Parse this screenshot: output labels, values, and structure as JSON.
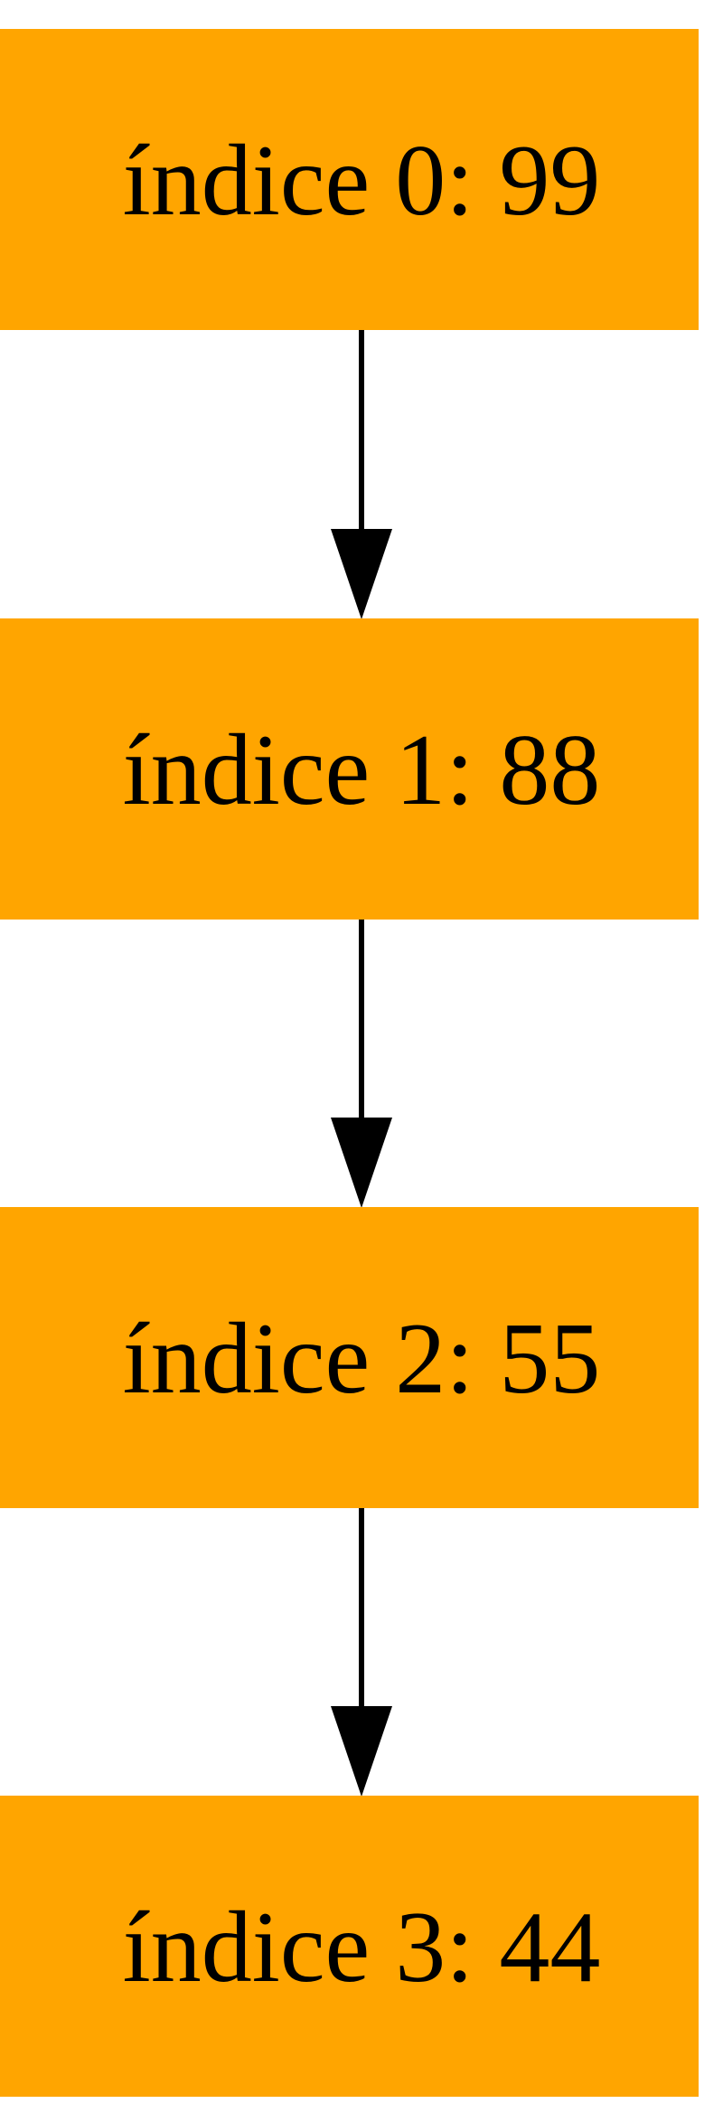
{
  "diagram": {
    "type": "flowchart",
    "node_fill": "#FFA500",
    "edge_color": "#000000",
    "nodes": [
      {
        "id": "n0",
        "label": "índice 0: 99"
      },
      {
        "id": "n1",
        "label": "índice 1: 88"
      },
      {
        "id": "n2",
        "label": "índice 2: 55"
      },
      {
        "id": "n3",
        "label": "índice 3: 44"
      }
    ],
    "edges": [
      {
        "from": "n0",
        "to": "n1"
      },
      {
        "from": "n1",
        "to": "n2"
      },
      {
        "from": "n2",
        "to": "n3"
      }
    ]
  }
}
